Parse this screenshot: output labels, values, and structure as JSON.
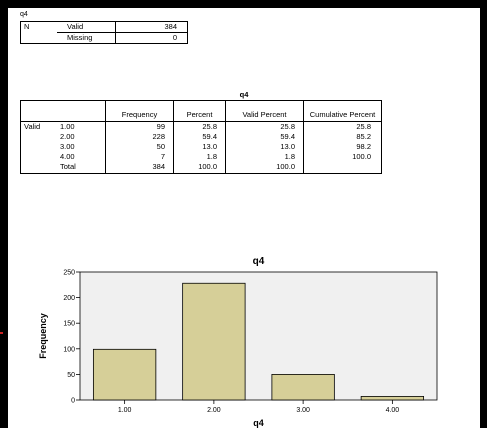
{
  "stats": {
    "title": "q4",
    "row_header": "N",
    "rows": [
      {
        "label": "Valid",
        "value": "384"
      },
      {
        "label": "Missing",
        "value": "0"
      }
    ]
  },
  "freq_table": {
    "title": "q4",
    "headers": [
      "Frequency",
      "Percent",
      "Valid Percent",
      "Cumulative Percent"
    ],
    "group_label": "Valid",
    "rows": [
      {
        "label": "1.00",
        "frequency": "99",
        "percent": "25.8",
        "valid_percent": "25.8",
        "cumulative": "25.8"
      },
      {
        "label": "2.00",
        "frequency": "228",
        "percent": "59.4",
        "valid_percent": "59.4",
        "cumulative": "85.2"
      },
      {
        "label": "3.00",
        "frequency": "50",
        "percent": "13.0",
        "valid_percent": "13.0",
        "cumulative": "98.2"
      },
      {
        "label": "4.00",
        "frequency": "7",
        "percent": "1.8",
        "valid_percent": "1.8",
        "cumulative": "100.0"
      },
      {
        "label": "Total",
        "frequency": "384",
        "percent": "100.0",
        "valid_percent": "100.0",
        "cumulative": ""
      }
    ]
  },
  "chart_data": {
    "type": "bar",
    "title": "q4",
    "xlabel": "q4",
    "ylabel": "Frequency",
    "categories": [
      "1.00",
      "2.00",
      "3.00",
      "4.00"
    ],
    "values": [
      99,
      228,
      50,
      7
    ],
    "ylim": [
      0,
      250
    ],
    "yticks": [
      "0",
      "50",
      "100",
      "150",
      "200",
      "250"
    ],
    "grid": false,
    "bar_color": "#D6CF98",
    "plot_bg": "#F0F0F0"
  }
}
